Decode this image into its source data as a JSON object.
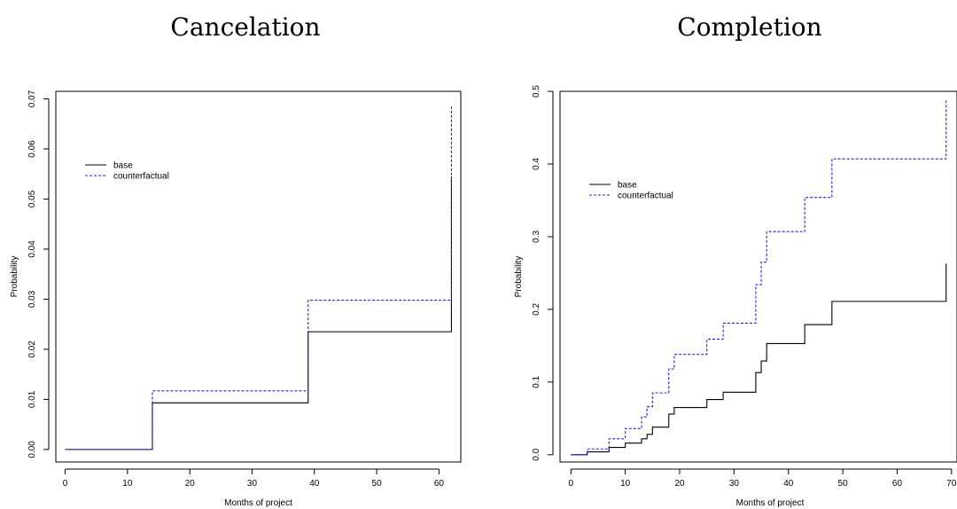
{
  "chart_data": [
    {
      "type": "line",
      "title": "Cancelation",
      "xlabel": "Months of project",
      "ylabel": "Probability",
      "xlim": [
        -1.5,
        63.5
      ],
      "ylim": [
        -0.0025,
        0.0715
      ],
      "xticks": [
        0,
        10,
        20,
        30,
        40,
        50,
        60
      ],
      "yticks": [
        0.0,
        0.01,
        0.02,
        0.03,
        0.04,
        0.05,
        0.06,
        0.07
      ],
      "xtick_labels": [
        "0",
        "10",
        "20",
        "30",
        "40",
        "50",
        "60"
      ],
      "ytick_labels": [
        "0.00",
        "0.01",
        "0.02",
        "0.03",
        "0.04",
        "0.05",
        "0.06",
        "0.07"
      ],
      "step": true,
      "grid": false,
      "legend": "top-left",
      "series": [
        {
          "name": "base",
          "color": "#000000",
          "dash": "solid",
          "x": [
            0,
            14,
            39,
            62,
            62
          ],
          "y": [
            0,
            0.0093,
            0.0235,
            0.0235,
            0.0545
          ]
        },
        {
          "name": "counterfactual",
          "color": "#2020e0",
          "dash": "dashed",
          "x": [
            0,
            14,
            39,
            62,
            62
          ],
          "y": [
            0,
            0.0117,
            0.0298,
            0.0298,
            0.0685
          ]
        }
      ]
    },
    {
      "type": "line",
      "title": "Completion",
      "xlabel": "Months of project",
      "ylabel": "Probability",
      "xlim": [
        -2,
        71
      ],
      "ylim": [
        -0.01,
        0.5
      ],
      "xticks": [
        0,
        10,
        20,
        30,
        40,
        50,
        60,
        70
      ],
      "yticks": [
        0.0,
        0.1,
        0.2,
        0.3,
        0.4,
        0.5
      ],
      "xtick_labels": [
        "0",
        "10",
        "20",
        "30",
        "40",
        "50",
        "60",
        "70"
      ],
      "ytick_labels": [
        "0.0",
        "0.1",
        "0.2",
        "0.3",
        "0.4",
        "0.5"
      ],
      "step": true,
      "grid": false,
      "legend": "top-left",
      "series": [
        {
          "name": "base",
          "color": "#000000",
          "dash": "solid",
          "x": [
            0,
            3,
            7,
            10,
            13,
            14,
            15,
            17,
            18,
            19,
            20,
            25,
            28,
            34,
            35,
            36,
            43,
            48,
            69,
            69
          ],
          "y": [
            0,
            0.004,
            0.01,
            0.016,
            0.022,
            0.028,
            0.038,
            0.038,
            0.056,
            0.065,
            0.065,
            0.076,
            0.086,
            0.113,
            0.129,
            0.153,
            0.179,
            0.211,
            0.211,
            0.263
          ]
        },
        {
          "name": "counterfactual",
          "color": "#2020e0",
          "dash": "dashed",
          "x": [
            0,
            3,
            7,
            10,
            13,
            14,
            15,
            17,
            18,
            19,
            20,
            25,
            27,
            28,
            34,
            35,
            36,
            43,
            48,
            69,
            69
          ],
          "y": [
            0,
            0.008,
            0.022,
            0.036,
            0.052,
            0.066,
            0.085,
            0.085,
            0.118,
            0.138,
            0.138,
            0.159,
            0.159,
            0.181,
            0.234,
            0.265,
            0.307,
            0.354,
            0.407,
            0.407,
            0.49
          ]
        }
      ]
    }
  ]
}
